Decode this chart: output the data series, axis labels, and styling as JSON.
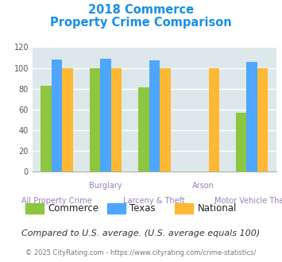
{
  "title_line1": "2018 Commerce",
  "title_line2": "Property Crime Comparison",
  "categories": [
    "All Property Crime",
    "Burglary",
    "Larceny & Theft",
    "Arson",
    "Motor Vehicle Theft"
  ],
  "row1_labels": [
    "",
    "Burglary",
    "",
    "Arson",
    ""
  ],
  "row2_labels": [
    "All Property Crime",
    "",
    "Larceny & Theft",
    "",
    "Motor Vehicle Theft"
  ],
  "commerce": [
    83,
    100,
    81,
    0,
    57
  ],
  "texas": [
    108,
    109,
    107,
    0,
    106
  ],
  "national": [
    100,
    100,
    100,
    100,
    100
  ],
  "arson_hide_commerce": true,
  "arson_hide_texas": true,
  "colors": {
    "commerce": "#8dc63f",
    "texas": "#4da6ff",
    "national": "#ffb833"
  },
  "ylim": [
    0,
    120
  ],
  "yticks": [
    0,
    20,
    40,
    60,
    80,
    100,
    120
  ],
  "bg_color": "#dde8ea",
  "title_color": "#1a8fe3",
  "label_color1": "#9980b8",
  "label_color2": "#9980b8",
  "footnote_text": "Compared to U.S. average. (U.S. average equals 100)",
  "footnote_color": "#333333",
  "copyright_text": "© 2025 CityRating.com - https://www.cityrating.com/crime-statistics/",
  "copyright_color": "#777777",
  "copyright_url_color": "#4da6ff",
  "legend_labels": [
    "Commerce",
    "Texas",
    "National"
  ],
  "bar_width": 0.22
}
